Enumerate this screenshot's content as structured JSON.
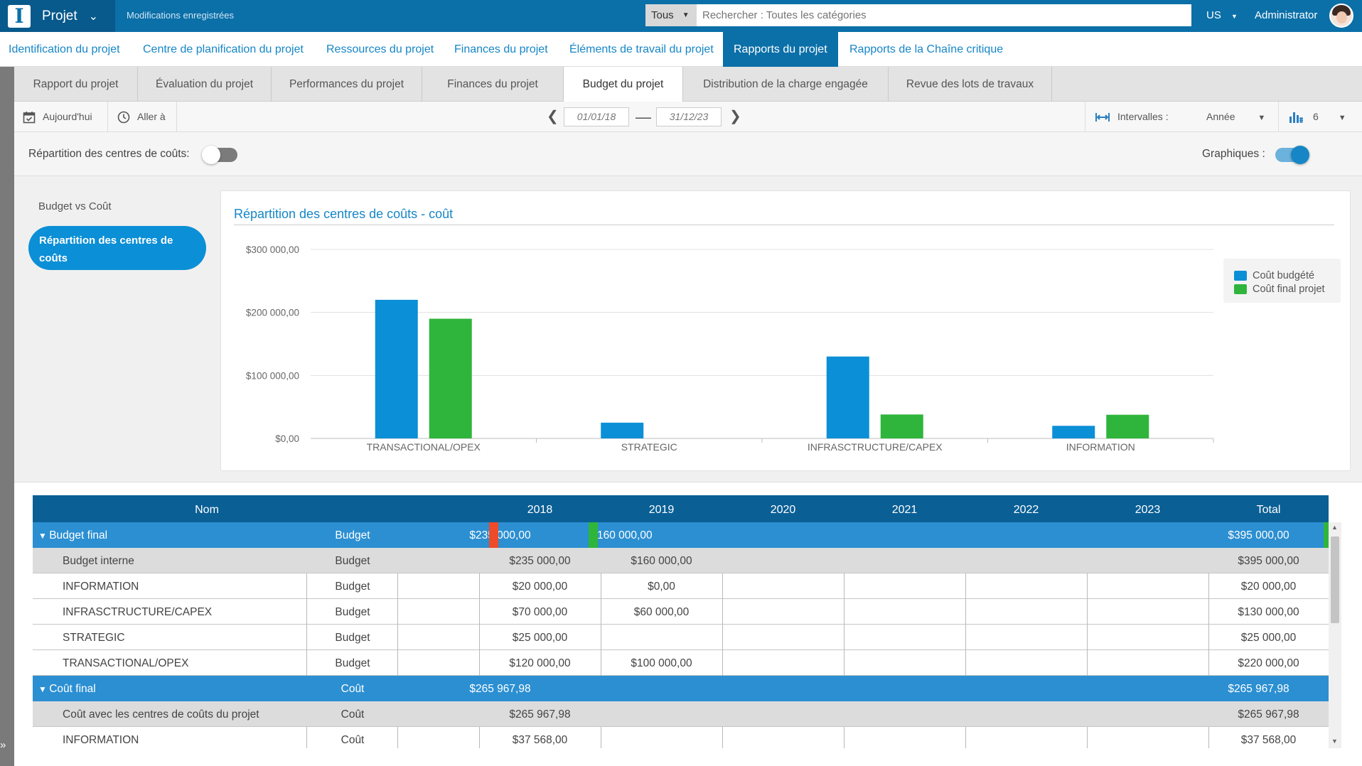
{
  "topbar": {
    "app_name": "Projet",
    "save_status": "Modifications enregistrées",
    "search_scope": "Tous",
    "search_placeholder": "Rechercher : Toutes les catégories",
    "language": "US",
    "user_name": "Administrator"
  },
  "main_nav": [
    {
      "label": "Identification du projet",
      "active": false
    },
    {
      "label": "Centre de planification du projet",
      "active": false
    },
    {
      "label": "Ressources du projet",
      "active": false
    },
    {
      "label": "Finances du projet",
      "active": false
    },
    {
      "label": "Éléments de travail du projet",
      "active": false
    },
    {
      "label": "Rapports du projet",
      "active": true
    },
    {
      "label": "Rapports de la Chaîne critique",
      "active": false
    }
  ],
  "sub_tabs": [
    {
      "label": "Rapport du projet",
      "active": false
    },
    {
      "label": "Évaluation du projet",
      "active": false
    },
    {
      "label": "Performances du projet",
      "active": false
    },
    {
      "label": "Finances du projet",
      "active": false
    },
    {
      "label": "Budget du projet",
      "active": true
    },
    {
      "label": "Distribution de la charge engagée",
      "active": false
    },
    {
      "label": "Revue des lots de travaux",
      "active": false
    }
  ],
  "toolbar": {
    "today": "Aujourd'hui",
    "goto": "Aller à",
    "date_from": "01/01/18",
    "date_to": "31/12/23",
    "intervals_label": "Intervalles :",
    "interval_value": "Année",
    "columns_count": "6"
  },
  "options": {
    "cost_center_label": "Répartition des centres de coûts:",
    "cost_center_toggle": false,
    "charts_label": "Graphiques :",
    "charts_toggle": true
  },
  "side_menu": {
    "item1": "Budget vs Coût",
    "item2": "Répartition des centres de coûts"
  },
  "colors": {
    "budget": "#0b8fd6",
    "cost": "#2fb53c",
    "marker_red": "#ee4b2b",
    "marker_green": "#2fb53c"
  },
  "chart_data": {
    "type": "bar",
    "title": "Répartition des centres de coûts - coût",
    "categories": [
      "TRANSACTIONAL/OPEX",
      "STRATEGIC",
      "INFRASCTRUCTURE/CAPEX",
      "INFORMATION"
    ],
    "series": [
      {
        "name": "Coût budgété",
        "values": [
          220000,
          25000,
          130000,
          20000
        ]
      },
      {
        "name": "Coût final projet",
        "values": [
          190000,
          0,
          38000,
          37568
        ]
      }
    ],
    "yticks": [
      "$0,00",
      "$100 000,00",
      "$200 000,00",
      "$300 000,00"
    ],
    "ylim": [
      0,
      300000
    ],
    "grid": true,
    "legend": "top-right"
  },
  "grid": {
    "headers": {
      "name": "Nom",
      "years": [
        "2018",
        "2019",
        "2020",
        "2021",
        "2022",
        "2023"
      ],
      "total": "Total"
    },
    "rows": [
      {
        "kind": "group",
        "name": "Budget final",
        "type": "Budget",
        "values": [
          "$235 000,00",
          "$160 000,00",
          "",
          "",
          "",
          ""
        ],
        "total": "$395 000,00",
        "markers": [
          "red",
          "green",
          "green"
        ]
      },
      {
        "kind": "sub",
        "name": "Budget interne",
        "type": "Budget",
        "values": [
          "$235 000,00",
          "$160 000,00",
          "",
          "",
          "",
          ""
        ],
        "total": "$395 000,00"
      },
      {
        "kind": "data",
        "name": "INFORMATION",
        "type": "Budget",
        "values": [
          "$20 000,00",
          "$0,00",
          "",
          "",
          "",
          ""
        ],
        "total": "$20 000,00"
      },
      {
        "kind": "data",
        "name": "INFRASCTRUCTURE/CAPEX",
        "type": "Budget",
        "values": [
          "$70 000,00",
          "$60 000,00",
          "",
          "",
          "",
          ""
        ],
        "total": "$130 000,00"
      },
      {
        "kind": "data",
        "name": "STRATEGIC",
        "type": "Budget",
        "values": [
          "$25 000,00",
          "",
          "",
          "",
          "",
          ""
        ],
        "total": "$25 000,00"
      },
      {
        "kind": "data",
        "name": "TRANSACTIONAL/OPEX",
        "type": "Budget",
        "values": [
          "$120 000,00",
          "$100 000,00",
          "",
          "",
          "",
          ""
        ],
        "total": "$220 000,00"
      },
      {
        "kind": "group",
        "name": "Coût final",
        "type": "Coût",
        "values": [
          "$265 967,98",
          "",
          "",
          "",
          "",
          ""
        ],
        "total": "$265 967,98"
      },
      {
        "kind": "sub",
        "name": "Coût avec les centres de coûts du projet",
        "type": "Coût",
        "values": [
          "$265 967,98",
          "",
          "",
          "",
          "",
          ""
        ],
        "total": "$265 967,98"
      },
      {
        "kind": "data",
        "name": "INFORMATION",
        "type": "Coût",
        "values": [
          "$37 568,00",
          "",
          "",
          "",
          "",
          ""
        ],
        "total": "$37 568,00"
      }
    ]
  }
}
